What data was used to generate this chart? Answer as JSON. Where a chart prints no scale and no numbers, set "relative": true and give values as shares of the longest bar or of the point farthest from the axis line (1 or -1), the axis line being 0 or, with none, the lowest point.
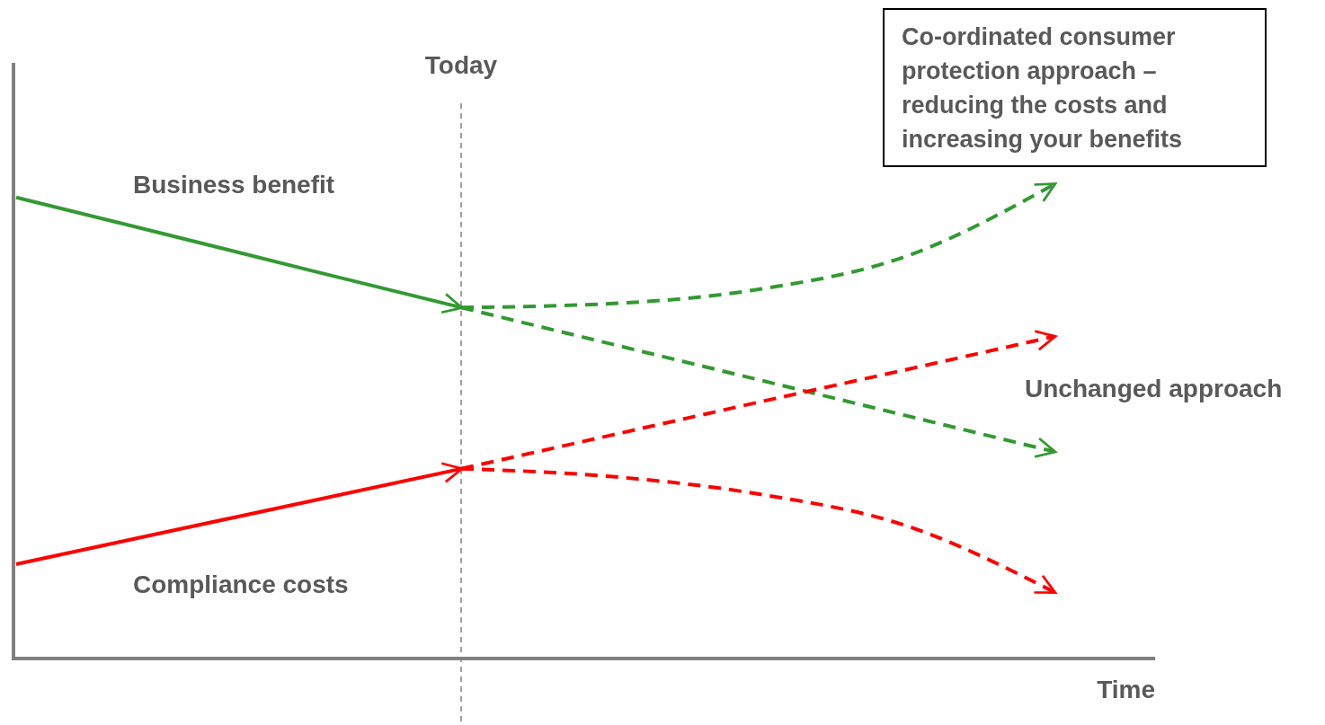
{
  "chart_data": {
    "type": "line",
    "relative": true,
    "xlabel": "Time",
    "categories": [
      null,
      null,
      null,
      null,
      null,
      null,
      null,
      null
    ],
    "series": [
      {
        "name": "Business benefit",
        "color": "#339933",
        "line_style": "solid",
        "values": [
          0.972,
          0.895,
          0.817,
          0.74,
          null,
          null,
          null,
          null
        ]
      },
      {
        "color": "#339933",
        "line_style": "dashed",
        "values": [
          null,
          null,
          null,
          0.74,
          0.748,
          0.778,
          0.848,
          1
        ]
      },
      {
        "color": "#339933",
        "line_style": "dashed",
        "values": [
          null,
          null,
          null,
          0.74,
          0.664,
          0.588,
          0.512,
          0.436
        ]
      },
      {
        "name": "Compliance costs",
        "color": "#ff0000",
        "line_style": "solid",
        "values": [
          0.199,
          0.266,
          0.333,
          0.4,
          null,
          null,
          null,
          null
        ]
      },
      {
        "color": "#ff0000",
        "line_style": "dashed",
        "values": [
          null,
          null,
          null,
          0.4,
          0.47,
          0.54,
          0.609,
          0.679
        ]
      },
      {
        "color": "#ff0000",
        "line_style": "dashed",
        "values": [
          null,
          null,
          null,
          0.4,
          0.384,
          0.347,
          0.28,
          0.14
        ]
      }
    ],
    "annotations": [
      "Unchanged approach",
      "Co-ordinated consumer\nprotection approach –\nreducing the costs and\nincreasing your benefits",
      "Today"
    ]
  }
}
